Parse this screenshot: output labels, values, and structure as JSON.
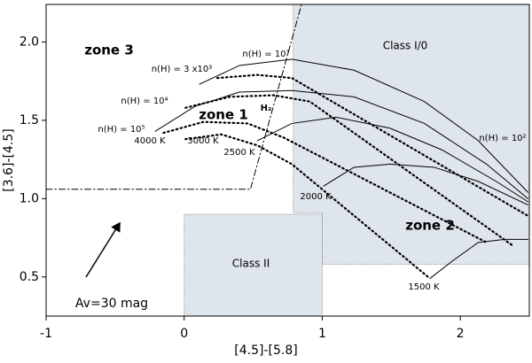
{
  "chart_data": {
    "type": "line",
    "x_label": "[4.5]-[5.8]",
    "y_label": "[3.6]-[4.5]",
    "xlim": [
      -1.0,
      2.5
    ],
    "ylim": [
      0.25,
      2.24
    ],
    "xticks": [
      -1,
      0,
      1,
      2
    ],
    "yticks": [
      0.5,
      {
        "value": 1.0,
        "label": "1.0"
      },
      1.5,
      {
        "value": 2.0,
        "label": "2.0"
      }
    ],
    "regions": [
      {
        "label": "Class I/0",
        "color": "#dfe5ec",
        "x": [
          0.79,
          2.5,
          2.5,
          1.0,
          1.0,
          0.79
        ],
        "y": [
          2.24,
          2.24,
          0.58,
          0.58,
          0.91,
          0.91
        ]
      },
      {
        "label": "Class II",
        "color": "#dfe5ec",
        "x": [
          0,
          1,
          1,
          0
        ],
        "y": [
          0.25,
          0.25,
          0.9,
          0.9
        ]
      }
    ],
    "series": [
      {
        "style": "solid",
        "color": "#000000",
        "x": [
          0.11,
          0.4,
          0.78,
          1.23,
          1.74,
          2.13,
          2.49
        ],
        "y": [
          1.73,
          1.85,
          1.89,
          1.82,
          1.62,
          1.37,
          1.04
        ]
      },
      {
        "style": "solid",
        "color": "#000000",
        "x": [
          -0.21,
          0.08,
          0.4,
          0.78,
          1.23,
          1.74,
          2.19,
          2.49
        ],
        "y": [
          1.43,
          1.59,
          1.68,
          1.69,
          1.65,
          1.48,
          1.22,
          1.0
        ]
      },
      {
        "style": "solid",
        "color": "#000000",
        "x": [
          0.53,
          0.78,
          1.1,
          1.49,
          1.87,
          2.26,
          2.49
        ],
        "y": [
          1.37,
          1.48,
          1.52,
          1.45,
          1.31,
          1.11,
          0.98
        ]
      },
      {
        "style": "solid",
        "color": "#000000",
        "x": [
          1.01,
          1.23,
          1.49,
          1.81,
          2.13,
          2.49
        ],
        "y": [
          1.08,
          1.2,
          1.22,
          1.2,
          1.11,
          0.96
        ]
      },
      {
        "style": "solid",
        "color": "#000000",
        "x": [
          1.78,
          1.94,
          2.13,
          2.32,
          2.49
        ],
        "y": [
          0.49,
          0.6,
          0.72,
          0.74,
          0.74
        ]
      },
      {
        "style": "dotted",
        "color": "#000000",
        "x": [
          0.24,
          0.53,
          0.78,
          2.49
        ],
        "y": [
          1.77,
          1.79,
          1.77,
          0.89
        ]
      },
      {
        "style": "dotted",
        "color": "#000000",
        "x": [
          0.01,
          0.33,
          0.65,
          0.91,
          2.38
        ],
        "y": [
          1.58,
          1.65,
          1.66,
          1.62,
          0.7
        ]
      },
      {
        "style": "dotted",
        "color": "#000000",
        "x": [
          -0.15,
          0.14,
          0.46,
          0.72,
          2.19
        ],
        "y": [
          1.42,
          1.49,
          1.48,
          1.39,
          0.72
        ]
      },
      {
        "style": "dotted",
        "color": "#000000",
        "x": [
          0.01,
          0.27,
          0.53,
          0.78,
          1.78
        ],
        "y": [
          1.38,
          1.41,
          1.34,
          1.22,
          0.49
        ]
      },
      {
        "style": "dashdot",
        "color": "#000000",
        "x": [
          -1.0,
          0.48,
          0.85
        ],
        "y": [
          1.06,
          1.06,
          2.24
        ]
      }
    ],
    "annotations": [
      "zone  3",
      "zone 1",
      "zone 2",
      "H₂",
      "n(H) = 10³",
      "n(H) = 3 x10³",
      "n(H) = 10⁴",
      "n(H) = 10⁵",
      "n(H) = 10²",
      "4000 K",
      "3000 K",
      "2500 K",
      "2000 K",
      "1500 K",
      "Av=30 mag"
    ]
  }
}
